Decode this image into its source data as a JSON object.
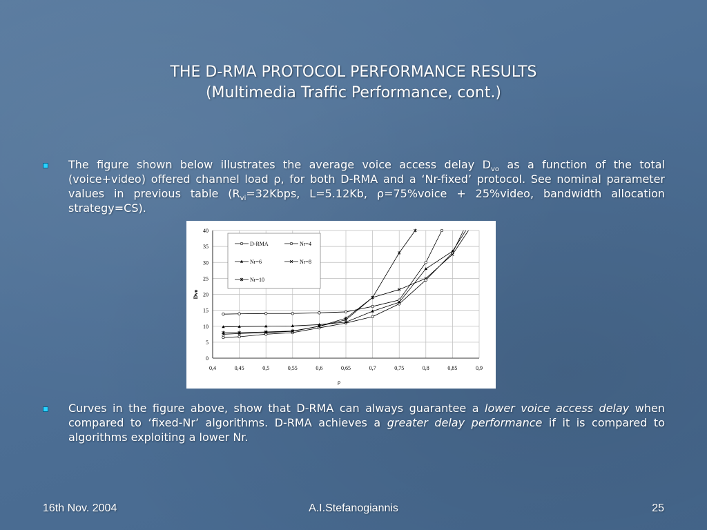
{
  "slide": {
    "title_line1": "THE D-RMA PROTOCOL PERFORMANCE RESULTS",
    "title_line2": "(Multimedia Traffic Performance, cont.)",
    "bullet1": {
      "t1": "The figure shown below illustrates the average voice access delay D",
      "t1_sub": "vo",
      "t2": " as a function of the total (voice+video) offered channel load ρ, for both D-RMA and a ‘Nr-fixed’ protocol. See nominal parameter values in previous table (R",
      "t2_sub": "vi",
      "t3": "=32Kbps, L=5.12Kb, ρ=75%voice + 25%video, bandwidth allocation strategy=CS)."
    },
    "bullet2": {
      "t1": "Curves in the figure above, show that D-RMA can always guarantee a ",
      "em1": "lower voice access delay",
      "t2": " when compared to ‘fixed-Nr’ algorithms. D-RMA achieves a ",
      "em2": "greater delay performance",
      "t3": " if it is compared to algorithms exploiting a lower Nr."
    },
    "footer": {
      "date": "16th Nov. 2004",
      "author": "A.I.Stefanogiannis",
      "page": "25"
    },
    "colors": {
      "bullet": "#29d3ff",
      "background": "#4d6f95"
    }
  },
  "chart_data": {
    "type": "line",
    "title": "",
    "xlabel": "ρ",
    "ylabel": "Dvo",
    "xlim": [
      0.4,
      0.9
    ],
    "ylim": [
      0,
      40
    ],
    "xticks": [
      "0,4",
      "0,45",
      "0,5",
      "0,55",
      "0,6",
      "0,65",
      "0,7",
      "0,75",
      "0,8",
      "0,85",
      "0,9"
    ],
    "yticks": [
      "0",
      "5",
      "10",
      "15",
      "20",
      "25",
      "30",
      "35",
      "40"
    ],
    "grid": true,
    "legend_position": "top-left",
    "series": [
      {
        "name": "D-RMA",
        "marker": "circle",
        "x": [
          0.42,
          0.45,
          0.5,
          0.55,
          0.6,
          0.65,
          0.7,
          0.75,
          0.8,
          0.85,
          0.9
        ],
        "y": [
          6.5,
          6.7,
          7.5,
          8.0,
          9.5,
          11.0,
          13.0,
          17.0,
          24.5,
          33.0,
          50.0
        ]
      },
      {
        "name": "Nr=4",
        "marker": "circle",
        "x": [
          0.42,
          0.45,
          0.5,
          0.55,
          0.6,
          0.65,
          0.7,
          0.75,
          0.8,
          0.83
        ],
        "y": [
          13.8,
          13.9,
          14.0,
          14.0,
          14.2,
          14.5,
          16.2,
          18.2,
          30.0,
          40.0
        ]
      },
      {
        "name": "Nr=6",
        "marker": "triangle",
        "x": [
          0.42,
          0.45,
          0.5,
          0.55,
          0.6,
          0.65,
          0.7,
          0.75,
          0.8,
          0.85,
          0.875
        ],
        "y": [
          9.8,
          9.9,
          10.0,
          10.1,
          10.5,
          11.3,
          14.7,
          17.5,
          28.0,
          33.5,
          40.0
        ]
      },
      {
        "name": "Nr=8",
        "marker": "x",
        "x": [
          0.42,
          0.45,
          0.5,
          0.55,
          0.6,
          0.65,
          0.7,
          0.75,
          0.8,
          0.85,
          0.88
        ],
        "y": [
          7.5,
          7.7,
          8.0,
          8.4,
          10.0,
          12.0,
          19.0,
          21.5,
          25.0,
          32.5,
          40.0
        ]
      },
      {
        "name": "Nr=10",
        "marker": "star",
        "x": [
          0.42,
          0.45,
          0.5,
          0.55,
          0.6,
          0.65,
          0.7,
          0.75,
          0.78
        ],
        "y": [
          8.0,
          8.0,
          8.2,
          8.5,
          10.0,
          12.5,
          19.0,
          33.0,
          40.0
        ]
      }
    ]
  }
}
